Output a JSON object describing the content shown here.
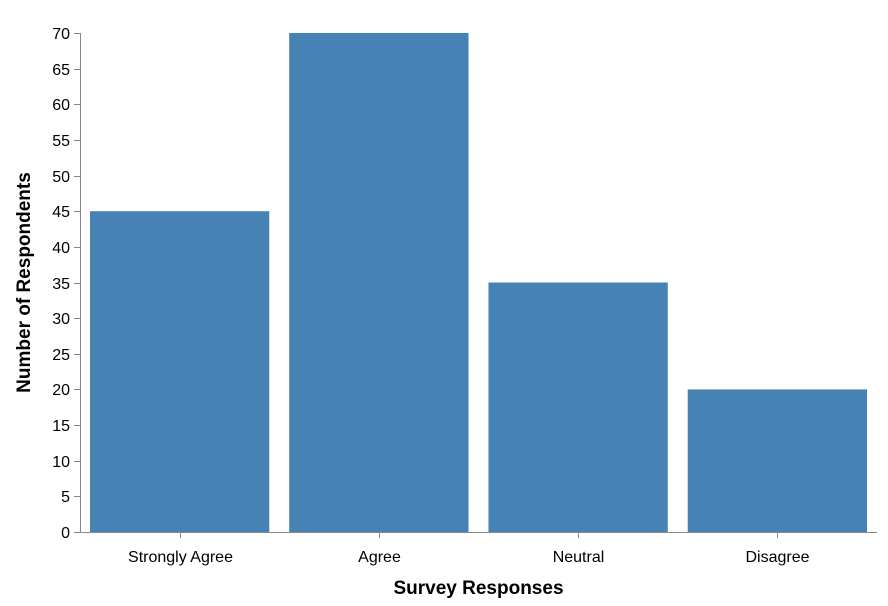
{
  "chart_data": {
    "type": "bar",
    "categories": [
      "Strongly Agree",
      "Agree",
      "Neutral",
      "Disagree"
    ],
    "values": [
      45,
      70,
      35,
      20
    ],
    "xlabel": "Survey Responses",
    "ylabel": "Number of Respondents",
    "ylim": [
      0,
      70
    ],
    "yticks": [
      0,
      5,
      10,
      15,
      20,
      25,
      30,
      35,
      40,
      45,
      50,
      55,
      60,
      65,
      70
    ],
    "grid": false,
    "colors": {
      "bar": "#4682b4",
      "axis": "#888888"
    }
  }
}
